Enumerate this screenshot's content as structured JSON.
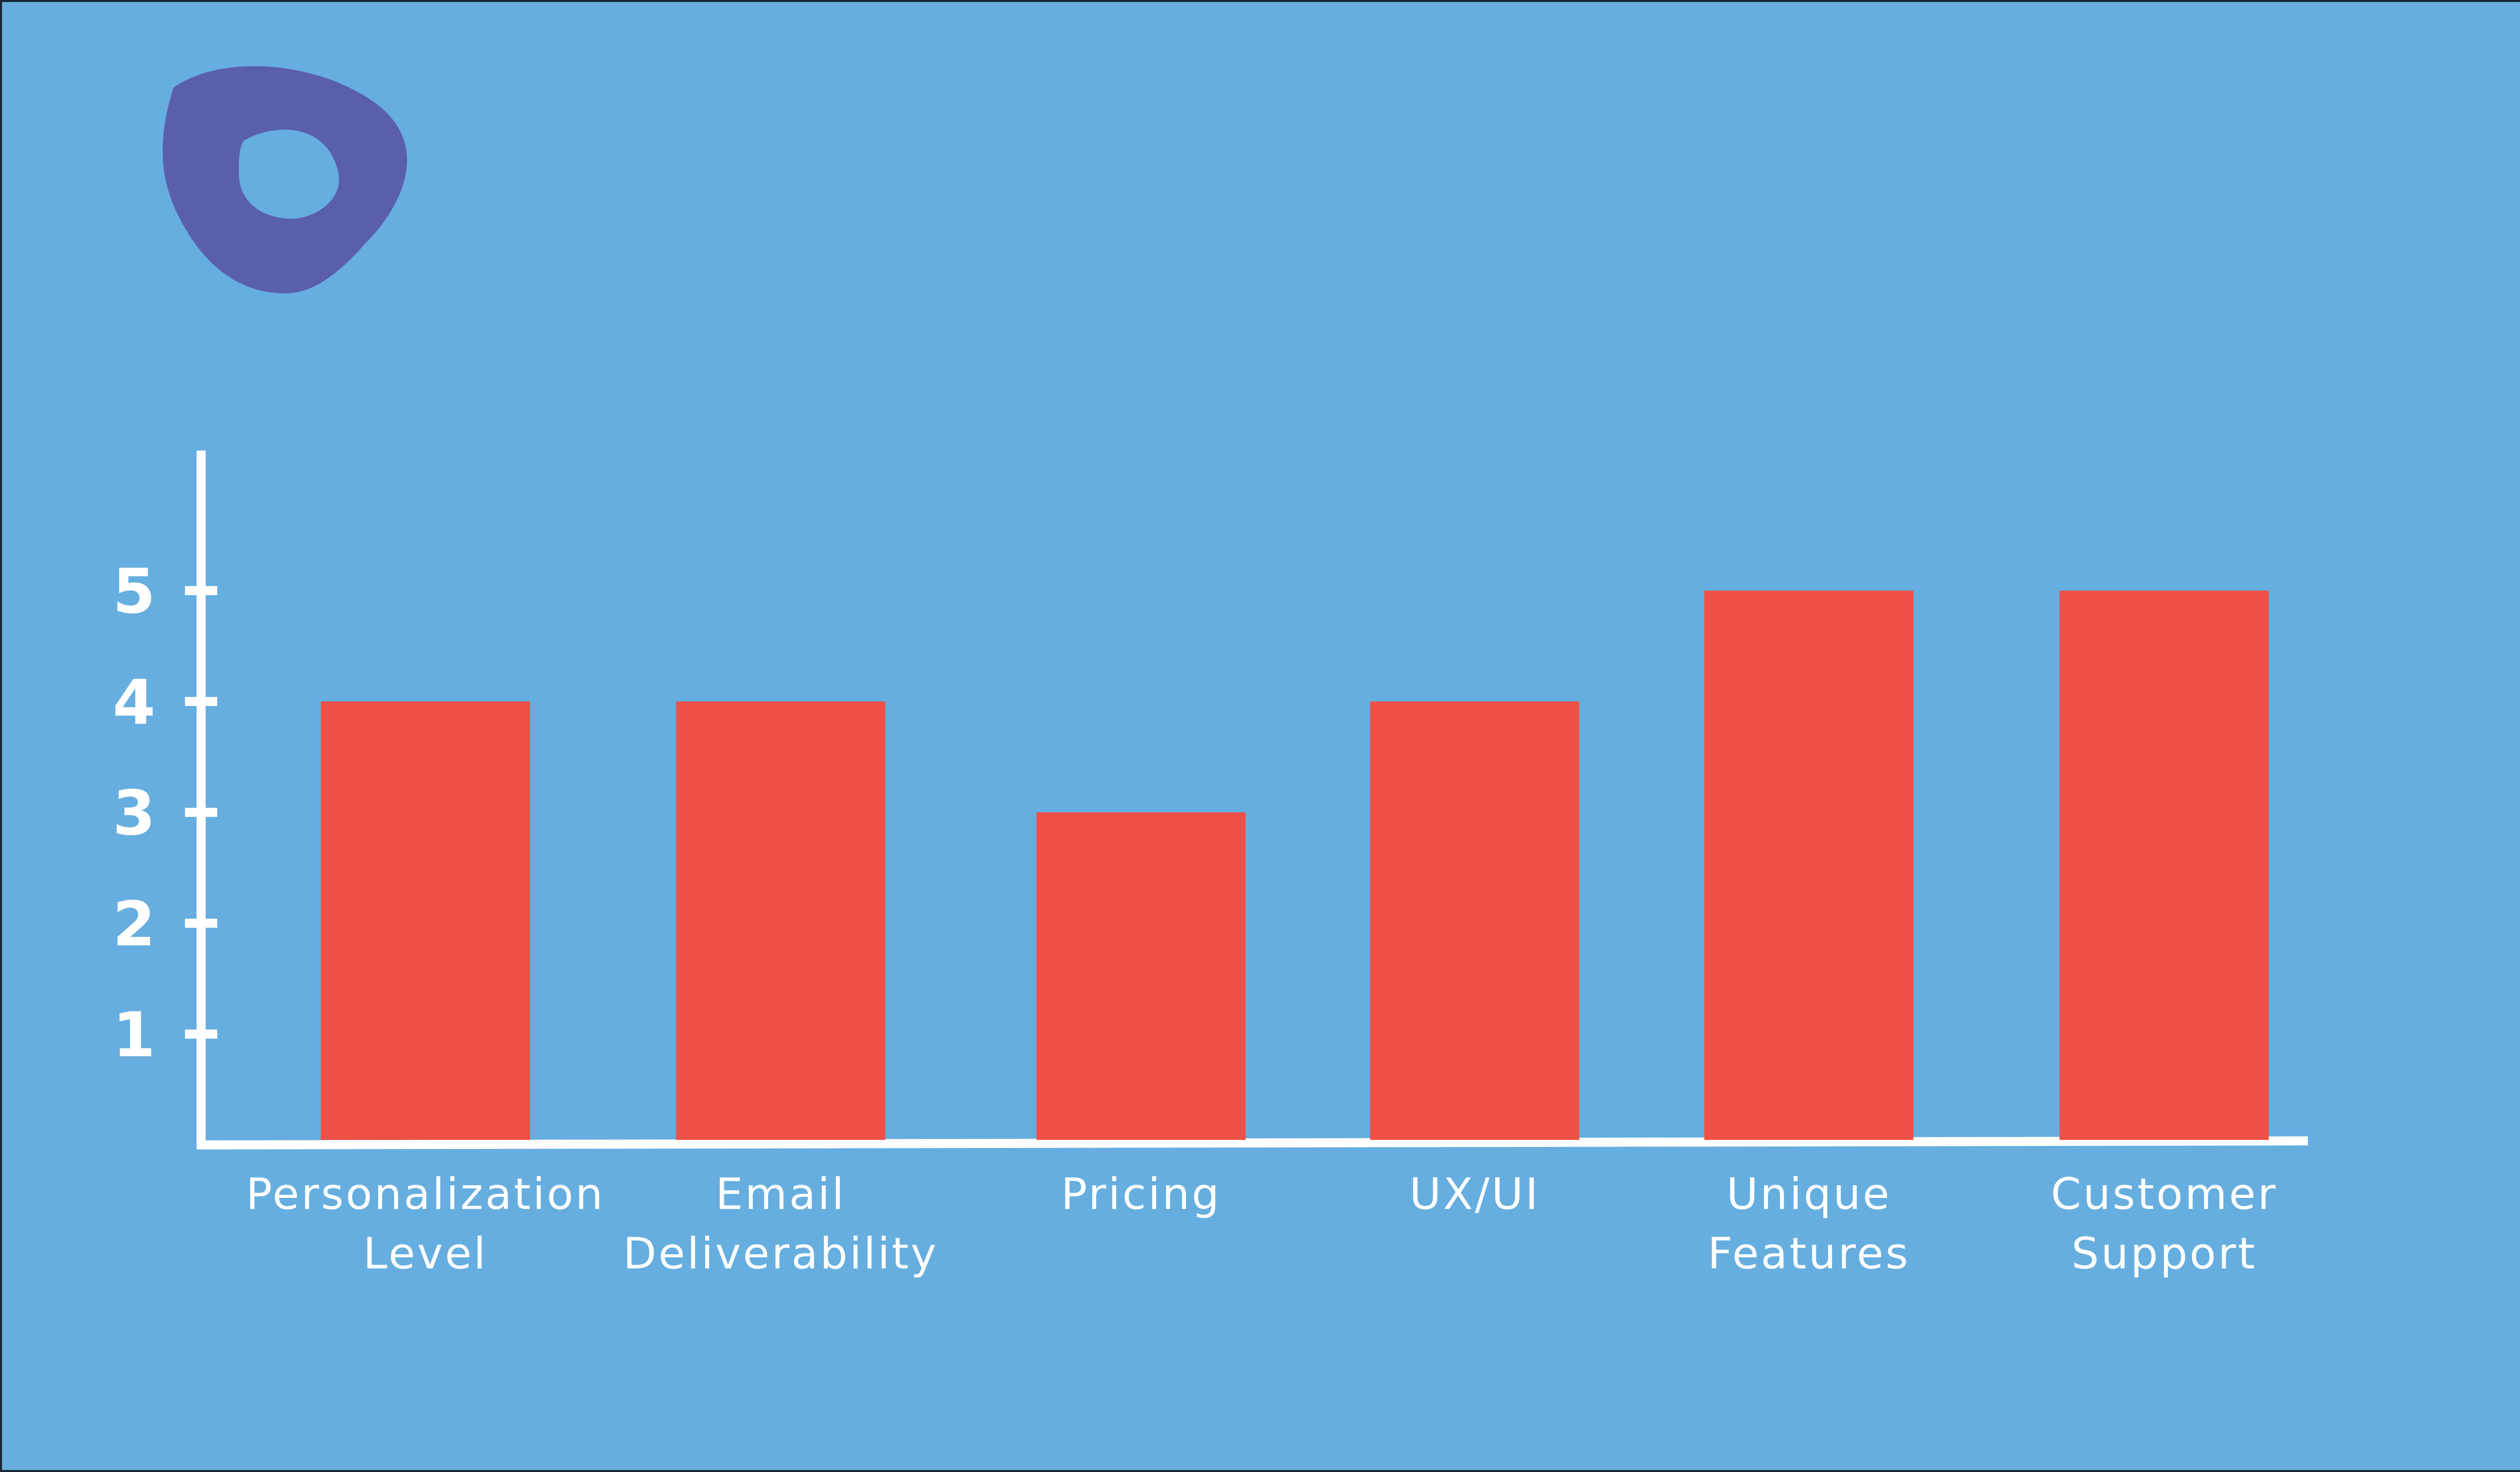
{
  "colors": {
    "background": "#66aedf",
    "bar": "#ef5046",
    "axis": "#ffffff",
    "text": "#ffffff",
    "logo": "#5a5faa"
  },
  "logo": {
    "icon": "outbrain-style-blob-logo-icon"
  },
  "chart_data": {
    "type": "bar",
    "categories": [
      [
        "Personalization",
        "Level"
      ],
      [
        "Email",
        "Deliverability"
      ],
      [
        "Pricing"
      ],
      [
        "UX/UI"
      ],
      [
        "Unique",
        "Features"
      ],
      [
        "Customer",
        "Support"
      ]
    ],
    "values": [
      4,
      4,
      3,
      4,
      5,
      5
    ],
    "yticks": [
      1,
      2,
      3,
      4,
      5
    ],
    "ylim": [
      0,
      6.3
    ],
    "grid": false,
    "legend": "none",
    "title": "",
    "xlabel": "",
    "ylabel": ""
  }
}
